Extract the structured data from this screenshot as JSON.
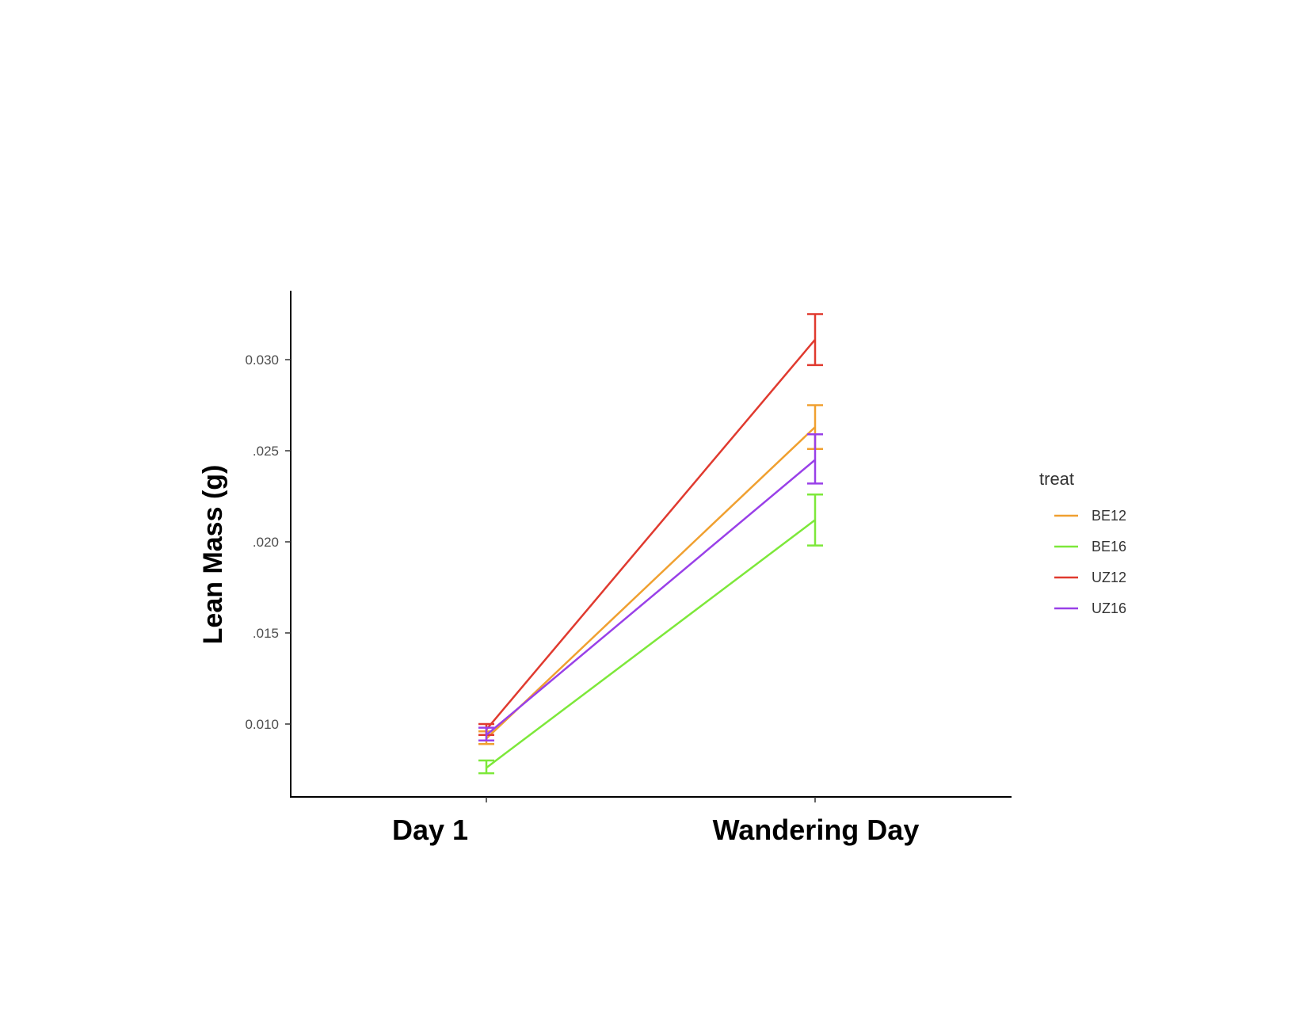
{
  "chart_data": {
    "type": "line",
    "categories": [
      "Day 1",
      "Wandering Day"
    ],
    "ylabel": "Lean Mass (g)",
    "xlabel": "",
    "ylim": [
      0.006,
      0.0345
    ],
    "yticks": [
      0.01,
      0.015,
      0.02,
      0.025,
      0.03
    ],
    "ytick_labels": [
      "0.010",
      ".015",
      ".020",
      ".025",
      "0.030"
    ],
    "legend": {
      "title": "treat",
      "position": "right"
    },
    "grid": false,
    "series": [
      {
        "name": "BE12",
        "color": "#f0a030",
        "values": [
          0.0092,
          0.0263
        ],
        "error_low": [
          0.0089,
          0.0251
        ],
        "error_high": [
          0.0096,
          0.0275
        ]
      },
      {
        "name": "BE16",
        "color": "#7de83a",
        "values": [
          0.0076,
          0.0212
        ],
        "error_low": [
          0.0073,
          0.0198
        ],
        "error_high": [
          0.008,
          0.0226
        ]
      },
      {
        "name": "UZ12",
        "color": "#e03a2f",
        "values": [
          0.0097,
          0.0311
        ],
        "error_low": [
          0.0094,
          0.0297
        ],
        "error_high": [
          0.01,
          0.0325
        ]
      },
      {
        "name": "UZ16",
        "color": "#9940e8",
        "values": [
          0.0094,
          0.0245
        ],
        "error_low": [
          0.0091,
          0.0232
        ],
        "error_high": [
          0.0098,
          0.0259
        ]
      }
    ]
  }
}
